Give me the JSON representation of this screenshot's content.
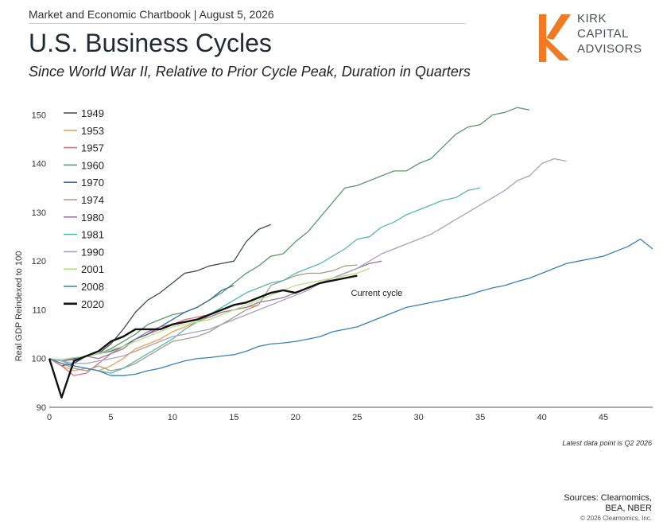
{
  "header": {
    "line": "Market and Economic Chartbook | August 5, 2026",
    "title": "U.S. Business Cycles",
    "subtitle": "Since World War II, Relative to Prior Cycle Peak, Duration in Quarters"
  },
  "logo": {
    "lines": [
      "KIRK",
      "CAPITAL",
      "ADVISORS"
    ],
    "color": "#f07a22"
  },
  "footer": {
    "note": "Latest data point is Q2 2026",
    "sources_line1": "Sources: Clearnomics,",
    "sources_line2": "BEA, NBER",
    "copyright": "© 2026 Clearnomics, Inc."
  },
  "chart_data": {
    "type": "line",
    "ylabel": "Real GDP Reindexed to 100",
    "xlabel": "",
    "xlim": [
      0,
      49
    ],
    "ylim": [
      90,
      153
    ],
    "xticks": [
      0,
      5,
      10,
      15,
      20,
      25,
      30,
      35,
      40,
      45
    ],
    "yticks": [
      90,
      100,
      110,
      120,
      130,
      140,
      150
    ],
    "annotation": {
      "text": "Current cycle",
      "x": 24.5,
      "y": 113.5
    },
    "legend_placement": "top-left",
    "grid": false,
    "series": [
      {
        "name": "1949",
        "color": "#3d4a5c",
        "width": 1.3,
        "values": [
          100,
          98.5,
          99,
          100.5,
          101,
          103,
          106,
          109.5,
          112,
          113.5,
          115.5,
          117.5,
          118,
          119,
          119.5,
          120,
          124,
          126.5,
          127.5
        ]
      },
      {
        "name": "1953",
        "color": "#f0a050",
        "width": 1.3,
        "values": [
          100,
          98.5,
          97.5,
          98,
          97.5,
          98.5,
          100,
          102,
          103,
          104,
          105.5,
          106.5,
          107.5,
          108.5,
          109.5,
          110,
          110.5,
          111
        ]
      },
      {
        "name": "1957",
        "color": "#e0707a",
        "width": 1.3,
        "values": [
          100,
          98.5,
          96.5,
          97,
          99,
          101,
          102.5,
          104,
          105,
          106,
          107,
          108,
          108.5,
          109,
          110
        ]
      },
      {
        "name": "1960",
        "color": "#5a9a6a",
        "width": 1.3,
        "values": [
          100,
          99.5,
          100,
          100.5,
          101,
          102,
          103.5,
          105,
          107,
          108,
          109,
          109.5,
          110.5,
          112,
          113.5,
          115.5,
          117.5,
          119,
          121,
          121.5,
          124,
          126,
          129,
          132,
          135,
          135.5,
          136.5,
          137.5,
          138.5,
          138.5,
          140,
          141,
          143.5,
          146,
          147.5,
          148,
          150,
          150.5,
          151.5,
          151
        ]
      },
      {
        "name": "1970",
        "color": "#3a6a9a",
        "width": 1.3,
        "values": [
          100,
          99.5,
          100,
          100.5,
          101,
          101.5,
          102.5,
          104,
          105,
          106.5,
          108,
          109.5,
          110.5,
          112,
          114,
          115
        ]
      },
      {
        "name": "1974",
        "color": "#a89a88",
        "width": 1.3,
        "values": [
          100,
          99,
          98,
          97.5,
          98.5,
          97.5,
          98,
          99,
          100.5,
          102,
          103.5,
          104,
          104.5,
          105.5,
          107,
          108.5,
          110,
          111,
          115,
          116,
          117,
          117.5,
          117.5,
          118,
          119,
          119.2
        ]
      },
      {
        "name": "1980",
        "color": "#9a7a9a",
        "width": 1.3,
        "values": [
          100,
          99.5,
          99.8,
          100.5,
          100,
          101,
          102,
          104,
          105.5,
          106.5,
          107,
          107.5,
          108,
          108.5,
          109.5,
          110,
          110.5,
          111.5,
          112,
          112.5,
          113.5,
          114.5,
          115.5,
          116.5,
          117.5,
          118.5,
          119.5,
          120
        ]
      },
      {
        "name": "1981",
        "color": "#5ab8a8",
        "width": 1.3,
        "values": [
          100,
          99.5,
          98.5,
          98,
          97.5,
          97,
          98,
          99.5,
          101,
          102.5,
          104,
          106,
          107.5,
          109,
          110.5,
          112,
          113.5,
          114.5,
          115.5,
          116,
          117.5,
          118.5,
          119.5,
          121,
          122.5,
          124.5,
          125,
          127,
          128,
          129.5,
          130.5,
          131.5,
          132.5,
          133,
          134.5,
          135
        ]
      },
      {
        "name": "1990",
        "color": "#a8a0c0",
        "width": 1.3,
        "values": [
          100,
          99.5,
          99,
          99,
          99.5,
          100,
          100.5,
          101.5,
          102.5,
          103.5,
          104.5,
          105,
          105.5,
          106,
          107,
          108,
          109,
          110,
          111,
          112,
          113,
          114,
          115.5,
          116.5,
          117.5,
          118.5,
          120,
          121.5,
          122.5,
          123.5,
          124.5,
          125.5,
          127,
          128.5,
          130,
          131.5,
          133,
          134.5,
          136.5,
          137.5,
          140,
          141,
          140.5
        ]
      },
      {
        "name": "2001",
        "color": "#b8e088",
        "width": 1.3,
        "values": [
          100,
          99.8,
          100.2,
          100.5,
          101,
          101.8,
          102.5,
          103.5,
          104.5,
          105.5,
          106.5,
          107,
          107.5,
          108,
          109,
          110,
          111,
          112,
          113,
          114,
          115,
          115.5,
          116,
          116.5,
          117,
          117.5,
          118.5
        ]
      },
      {
        "name": "2008",
        "color": "#3a80b8",
        "width": 1.3,
        "values": [
          100,
          99,
          98.5,
          98,
          97.5,
          96.5,
          96.5,
          96.8,
          97.5,
          98,
          98.8,
          99.5,
          100,
          100.2,
          100.5,
          100.8,
          101.5,
          102.5,
          103,
          103.2,
          103.5,
          104,
          104.5,
          105.5,
          106,
          106.5,
          107.5,
          108.5,
          109.5,
          110.5,
          111,
          111.5,
          112,
          112.5,
          113,
          113.8,
          114.5,
          115,
          115.8,
          116.5,
          117.5,
          118.5,
          119.5,
          120,
          120.5,
          121,
          122,
          123,
          124.5,
          122.5
        ]
      },
      {
        "name": "2020",
        "color": "#111111",
        "width": 2.4,
        "values": [
          100,
          92,
          99.5,
          100.5,
          101.5,
          103.5,
          104.5,
          106,
          106,
          106,
          107,
          107.5,
          108,
          109,
          110,
          111,
          111.5,
          112.5,
          113.5,
          114,
          113.5,
          114.5,
          115.5,
          116,
          116.5,
          117
        ]
      }
    ]
  }
}
